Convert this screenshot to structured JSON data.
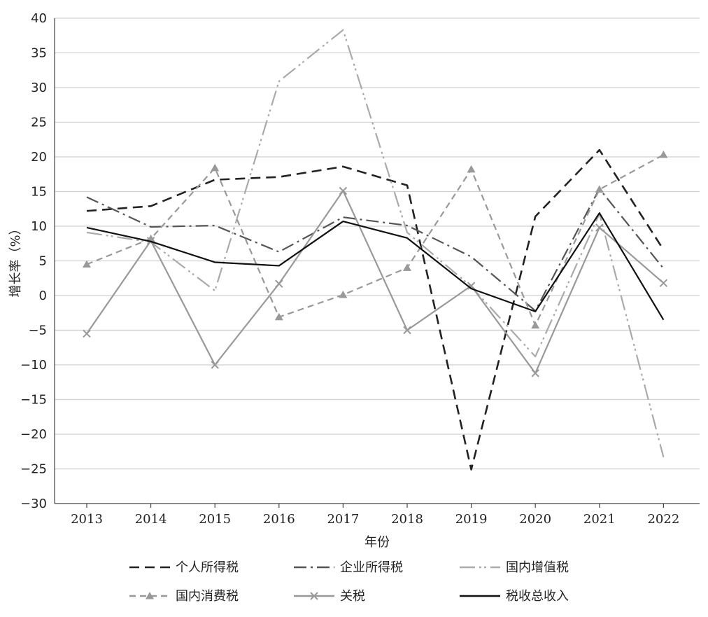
{
  "chart_data": {
    "type": "line",
    "title": "",
    "xlabel": "年份",
    "ylabel": "增长率（%）",
    "x": [
      "2013",
      "2014",
      "2015",
      "2016",
      "2017",
      "2018",
      "2019",
      "2020",
      "2021",
      "2022"
    ],
    "ylim": [
      -30,
      40
    ],
    "yticks": [
      "40",
      "35",
      "30",
      "25",
      "20",
      "15",
      "10",
      "5",
      "0",
      "−5",
      "−10",
      "−15",
      "−20",
      "−25",
      "−30"
    ],
    "grid": "horizontal",
    "legend_position": "bottom",
    "series": [
      {
        "name": "个人所得税",
        "values": [
          12.2,
          12.9,
          16.7,
          17.1,
          18.6,
          15.9,
          -25.1,
          11.4,
          21.0,
          6.6
        ],
        "color": "#222222",
        "dash": "14,8",
        "marker": "none"
      },
      {
        "name": "企业所得税",
        "values": [
          14.2,
          9.9,
          10.1,
          6.3,
          11.3,
          10.1,
          5.6,
          -2.2,
          15.4,
          3.9
        ],
        "color": "#555555",
        "dash": "18,6,3,6",
        "marker": "none"
      },
      {
        "name": "国内增值税",
        "values": [
          9.1,
          7.7,
          0.7,
          30.9,
          38.3,
          9.1,
          1.3,
          -8.8,
          11.8,
          -23.3
        ],
        "color": "#aaaaaa",
        "dash": "22,6,3,4,3,6",
        "marker": "none"
      },
      {
        "name": "国内消费税",
        "values": [
          4.5,
          8.2,
          18.4,
          -3.1,
          0.1,
          4.0,
          18.2,
          -4.3,
          15.3,
          20.3
        ],
        "color": "#999999",
        "dash": "9,6",
        "marker": "triangle"
      },
      {
        "name": "关税",
        "values": [
          -5.5,
          7.9,
          -10.0,
          1.7,
          15.1,
          -5.0,
          1.4,
          -11.2,
          9.8,
          1.8
        ],
        "color": "#999999",
        "dash": "",
        "marker": "x"
      },
      {
        "name": "税收总收入",
        "values": [
          9.8,
          7.8,
          4.8,
          4.3,
          10.7,
          8.3,
          1.0,
          -2.3,
          11.9,
          -3.5
        ],
        "color": "#111111",
        "dash": "",
        "marker": "none"
      }
    ]
  }
}
